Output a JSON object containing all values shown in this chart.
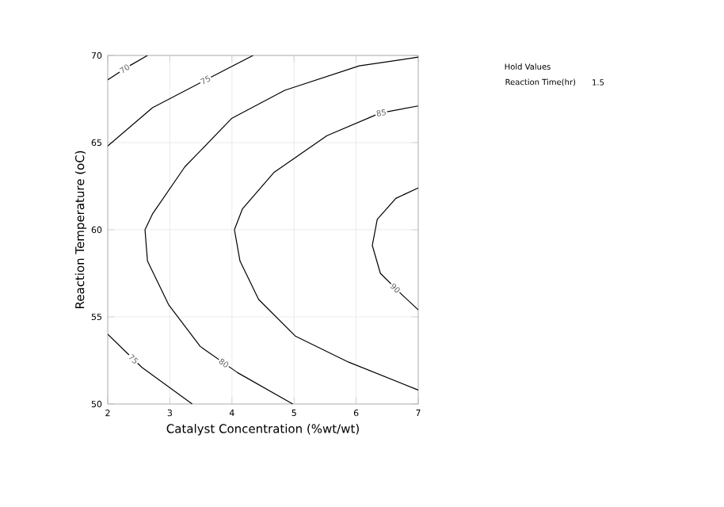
{
  "chart_data": {
    "type": "line",
    "xlabel": "Catalyst Concentration (%wt/wt)",
    "ylabel": "Reaction Temperature (oC)",
    "xlim": [
      2,
      7
    ],
    "ylim": [
      50,
      70
    ],
    "xticks": [
      2,
      3,
      4,
      5,
      6,
      7
    ],
    "yticks": [
      50,
      55,
      60,
      65,
      70
    ],
    "grid": true,
    "marker": "none",
    "line_style": "solid",
    "annotations": [
      "Hold Values",
      "Reaction Time(hr)",
      "1.5"
    ],
    "series": [
      {
        "name": "70",
        "color": "#000000",
        "x": [
          2,
          2.3,
          2.64
        ],
        "values": [
          68.6,
          69.3,
          70
        ]
      },
      {
        "name": "75",
        "color": "#000000",
        "x": [
          2,
          2.72,
          3.58,
          4.34
        ],
        "values": [
          64.8,
          67.0,
          68.6,
          70
        ]
      },
      {
        "name": "75",
        "color": "#000000",
        "x": [
          2,
          2.55,
          3.36
        ],
        "values": [
          54.0,
          52.1,
          50
        ]
      },
      {
        "name": "80",
        "color": "#000000",
        "x": [
          7,
          6.05,
          4.85,
          4.0,
          3.24,
          2.72,
          2.6,
          2.64,
          2.98,
          3.49,
          4.09,
          4.98
        ],
        "values": [
          69.9,
          69.4,
          68.0,
          66.4,
          63.6,
          60.9,
          60.0,
          58.2,
          55.7,
          53.3,
          51.8,
          50
        ]
      },
      {
        "name": "85",
        "color": "#000000",
        "x": [
          7,
          6.39,
          5.53,
          4.68,
          4.17,
          4.04,
          4.13,
          4.43,
          5.02,
          5.88,
          7
        ],
        "values": [
          67.1,
          66.7,
          65.4,
          63.3,
          61.2,
          60.0,
          58.2,
          56.0,
          53.9,
          52.4,
          50.8
        ]
      },
      {
        "name": "90",
        "color": "#000000",
        "x": [
          7,
          6.64,
          6.34,
          6.26,
          6.39,
          6.73,
          7
        ],
        "values": [
          62.4,
          61.8,
          60.6,
          59.1,
          57.5,
          56.3,
          55.4
        ]
      }
    ]
  }
}
